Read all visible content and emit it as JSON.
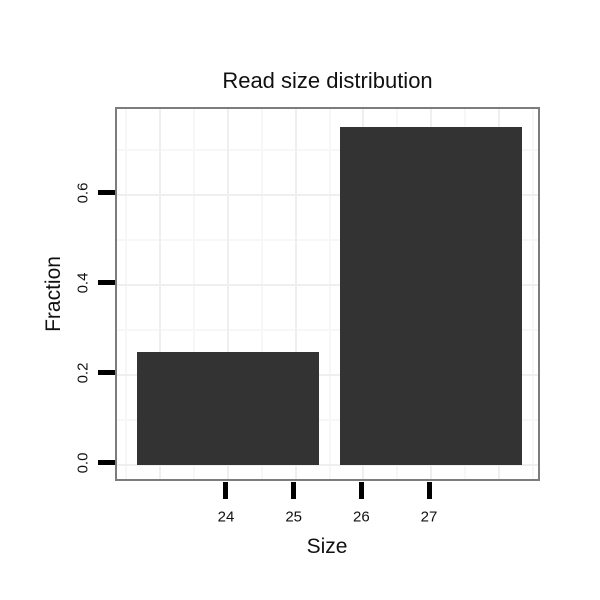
{
  "chart_data": {
    "type": "bar",
    "title": "Read size distribution",
    "xlabel": "Size",
    "ylabel": "Fraction",
    "bars": [
      {
        "x": 24,
        "value": 0.25
      },
      {
        "x": 27,
        "value": 0.75
      }
    ],
    "bar_width": 2.7,
    "x_ticks": [
      {
        "value": 24,
        "label": "24"
      },
      {
        "value": 25,
        "label": "25"
      },
      {
        "value": 26,
        "label": "26"
      },
      {
        "value": 27,
        "label": "27"
      }
    ],
    "y_ticks": [
      {
        "value": 0.0,
        "label": "0.0"
      },
      {
        "value": 0.2,
        "label": "0.2"
      },
      {
        "value": 0.4,
        "label": "0.4"
      },
      {
        "value": 0.6,
        "label": "0.6"
      }
    ],
    "x_major_gridlines": [
      23,
      24,
      25,
      26,
      27,
      28
    ],
    "x_minor_gridlines": [
      22.5,
      23.5,
      24.5,
      25.5,
      26.5,
      27.5,
      28.5
    ],
    "y_major_gridlines": [
      0.0,
      0.2,
      0.4,
      0.6
    ],
    "y_minor_gridlines": [
      0.1,
      0.3,
      0.5,
      0.7
    ],
    "xlim": [
      22.36,
      28.64
    ],
    "ylim": [
      -0.04,
      0.79
    ],
    "grid": true,
    "legend": "none",
    "colors": {
      "bar_fill": "#333333",
      "panel_border": "#7c7c7c",
      "grid_major": "#efefef",
      "grid_minor": "#f7f7f7",
      "tick": "#000000",
      "text": "#111111",
      "background": "#ffffff"
    }
  }
}
